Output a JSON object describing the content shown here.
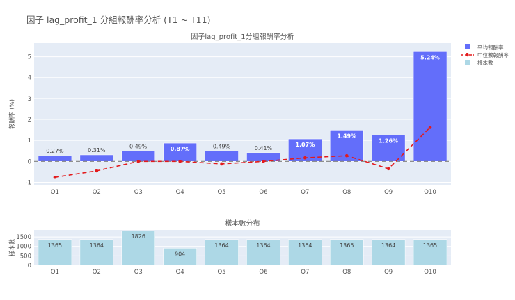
{
  "page": {
    "title": "因子 lag_profit_1 分組報酬率分析 (T1 ~ T11)"
  },
  "legend": {
    "items": [
      {
        "label": "平均報酬率",
        "color": "#636efa",
        "type": "bar"
      },
      {
        "label": "中位數報酬率",
        "color": "#e31a1c",
        "type": "line"
      },
      {
        "label": "樣本數",
        "color": "#add8e6",
        "type": "bar"
      }
    ]
  },
  "chart_data": [
    {
      "type": "bar",
      "title": "因子lag_profit_1分組報酬率分析",
      "xlabel": "",
      "ylabel": "報酬率 (%)",
      "ylim": [
        -1.15,
        5.65
      ],
      "yticks": [
        -1,
        0,
        1,
        2,
        3,
        4,
        5
      ],
      "categories": [
        "Q1",
        "Q2",
        "Q3",
        "Q4",
        "Q5",
        "Q6",
        "Q7",
        "Q8",
        "Q9",
        "Q10"
      ],
      "series": [
        {
          "name": "平均報酬率",
          "type": "bar",
          "color": "#636efa",
          "values": [
            0.27,
            0.31,
            0.49,
            0.87,
            0.49,
            0.41,
            1.07,
            1.49,
            1.26,
            5.24
          ],
          "labels": [
            "0.27%",
            "0.31%",
            "0.49%",
            "0.87%",
            "0.49%",
            "0.41%",
            "1.07%",
            "1.49%",
            "1.26%",
            "5.24%"
          ]
        },
        {
          "name": "中位數報酬率",
          "type": "line",
          "style": "dashed",
          "color": "#e31a1c",
          "values": [
            -0.76,
            -0.45,
            0.0,
            0.0,
            -0.12,
            0.0,
            0.17,
            0.27,
            -0.35,
            1.62
          ]
        }
      ],
      "reference_line": {
        "y": 0,
        "style": "dashed",
        "color": "#7f7f7f"
      },
      "grid": true
    },
    {
      "type": "bar",
      "title": "樣本數分布",
      "xlabel": "",
      "ylabel": "樣本數",
      "ylim": [
        0,
        1870
      ],
      "yticks": [
        0,
        500,
        1000,
        1500
      ],
      "categories": [
        "Q1",
        "Q2",
        "Q3",
        "Q4",
        "Q5",
        "Q6",
        "Q7",
        "Q8",
        "Q9",
        "Q10"
      ],
      "series": [
        {
          "name": "樣本數",
          "type": "bar",
          "color": "#add8e6",
          "values": [
            1365,
            1364,
            1826,
            904,
            1364,
            1364,
            1364,
            1365,
            1364,
            1365
          ]
        }
      ],
      "grid": true
    }
  ]
}
